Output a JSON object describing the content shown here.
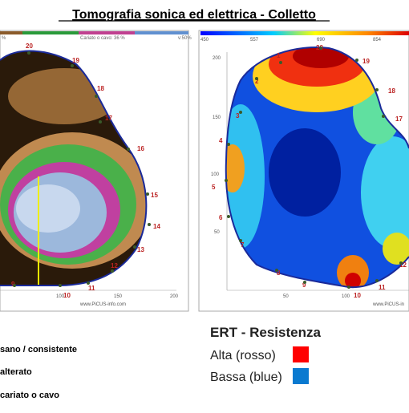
{
  "title": "Tomografia sonica ed elettrica - Colletto",
  "sonic": {
    "header": [
      "%",
      "Cariato o cavo: 36 %",
      "v:50%"
    ],
    "x_axis": [
      "100",
      "150",
      "200"
    ],
    "credit": "www.PiCUS-info.com",
    "nodes": [
      "20",
      "19",
      "18",
      "17",
      "16",
      "15",
      "14",
      "13",
      "12",
      "11",
      "10",
      "9"
    ]
  },
  "ert": {
    "scale": [
      "450",
      "557",
      "690",
      "854"
    ],
    "y_axis": [
      "200",
      "150",
      "100",
      "50"
    ],
    "x_axis": [
      "50",
      "100"
    ],
    "credit": "www.PiCUS-in",
    "nodes": [
      "1",
      "20",
      "19",
      "2",
      "18",
      "3",
      "17",
      "4",
      "5",
      "6",
      "7",
      "8",
      "9",
      "10",
      "11",
      "12"
    ]
  },
  "legend_sonic": [
    "sano / consistente",
    "alterato",
    "cariato o cavo"
  ],
  "legend_ert": {
    "title": "ERT - Resistenza",
    "items": [
      "Alta (rosso)",
      "Bassa (blue)"
    ]
  }
}
